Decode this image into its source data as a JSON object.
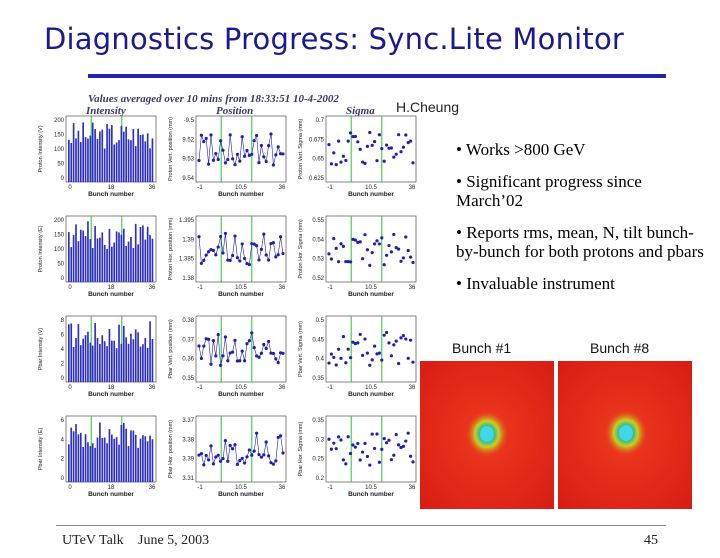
{
  "slide": {
    "title": "Diagnostics Progress: Sync.Lite Monitor",
    "author": "H.Cheung",
    "bullets": [
      "• Works >800 GeV",
      "• Significant progress since March’02",
      "• Reports rms, mean, N, tilt bunch-by-bunch for both protons and pbars",
      "• Invaluable instrument"
    ],
    "footer_left": "UTeV Talk",
    "footer_date": "June 5, 2003",
    "page_number": "45"
  },
  "monitor": {
    "header": "Values averaged over 10 mins from 18:33:51 10-4-2002",
    "columns": [
      "Intensity",
      "Position",
      "Sigma"
    ],
    "xlabel": "Bunch number",
    "xticks": [
      "0",
      "18",
      "36"
    ],
    "xticks_mid": [
      "-1",
      "10.5",
      "36"
    ],
    "rows": [
      {
        "ylabels": [
          "Proton Intensity (V)",
          "Proton Vert. position (mm)",
          "Proton Vert. Sigma (mm)"
        ],
        "yticks": [
          [
            "200",
            "150",
            "100",
            "50",
            "0"
          ],
          [
            "-9.5",
            "9.52",
            "9.53",
            "9.54"
          ],
          [
            "0.7",
            "0.675",
            "0.65",
            "0.625"
          ]
        ]
      },
      {
        "ylabels": [
          "Proton Intensity (E)",
          "Proton Hor. position (mm)",
          "Proton Hor. Sigma (mm)"
        ],
        "yticks": [
          [
            "200",
            "150",
            "100",
            "50",
            "0"
          ],
          [
            "1.395",
            "1.39",
            "1.385",
            "1.38"
          ],
          [
            "0.55",
            "0.54",
            "0.53",
            "0.52"
          ]
        ]
      },
      {
        "ylabels": [
          "Pbar Intensity (V)",
          "Pbar Vert. position (mm)",
          "Pbar Vert. Sigma (mm)"
        ],
        "yticks": [
          [
            "8",
            "6",
            "4",
            "2",
            "0"
          ],
          [
            "0.38",
            "0.37",
            "0.36",
            "0.35"
          ],
          [
            "0.5",
            "0.45",
            "0.4",
            "0.35"
          ]
        ]
      },
      {
        "ylabels": [
          "Pbar Intensity (E)",
          "Pbar Hor. position (mm)",
          "Pbar Hor. Sigma (mm)"
        ],
        "yticks": [
          [
            "6",
            "4",
            "2",
            "0"
          ],
          [
            "3.37",
            "3.38",
            "3.39",
            "3.31"
          ],
          [
            "0.35",
            "0.3",
            "0.25",
            "0.2"
          ]
        ]
      }
    ]
  },
  "images": [
    {
      "label": "Bunch #1"
    },
    {
      "label": "Bunch #8"
    }
  ],
  "colors": {
    "title": "#1a1a8c",
    "rule": "#2222aa",
    "bar": "#3030c0",
    "point": "#2020b0",
    "marker_line": "#30c030",
    "beam_bg": "#e8201a",
    "beam_core": "#20c8d0"
  }
}
